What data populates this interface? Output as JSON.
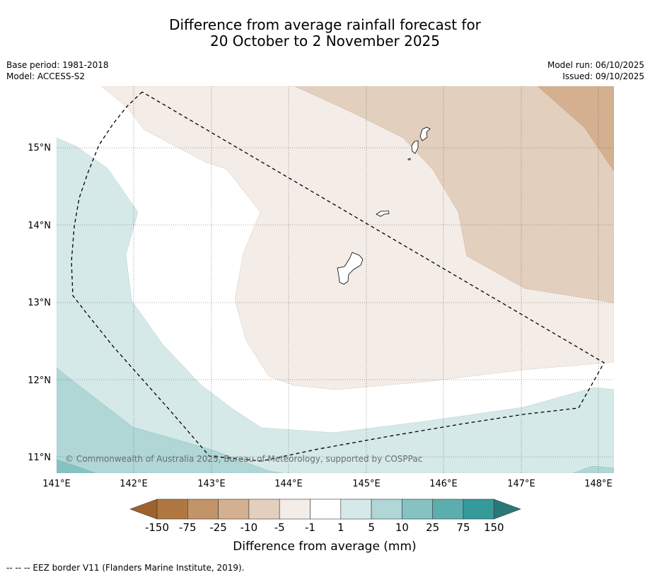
{
  "title": {
    "line1": "Difference from average rainfall forecast for",
    "line2": "20 October to 2 November 2025"
  },
  "meta": {
    "base_period": "Base period: 1981-2018",
    "model": "Model: ACCESS-S2",
    "model_run": "Model run: 06/10/2025",
    "issued": "Issued: 09/10/2025"
  },
  "map": {
    "lat_labels": [
      "15°N",
      "14°N",
      "13°N",
      "12°N",
      "11°N"
    ],
    "lon_labels": [
      "141°E",
      "142°E",
      "143°E",
      "144°E",
      "145°E",
      "146°E",
      "147°E",
      "148°E"
    ],
    "copyright": "© Commonwealth of Australia 2025, Bureau of Meteorology, supported by COSPPac"
  },
  "colorbar": {
    "ticks": [
      "-150",
      "-75",
      "-25",
      "-10",
      "-5",
      "-1",
      "1",
      "5",
      "10",
      "25",
      "75",
      "150"
    ],
    "label": "Difference from average (mm)",
    "colors": [
      "#a0622c",
      "#b07840",
      "#c29468",
      "#d4b090",
      "#e3cfbe",
      "#f3ece7",
      "#ffffff",
      "#d5e9e8",
      "#b0d6d6",
      "#86c2c2",
      "#5caeae",
      "#36999a",
      "#2a7878"
    ]
  },
  "footnote": "--  --  -- EEZ border V11 (Flanders Marine Institute, 2019)."
}
